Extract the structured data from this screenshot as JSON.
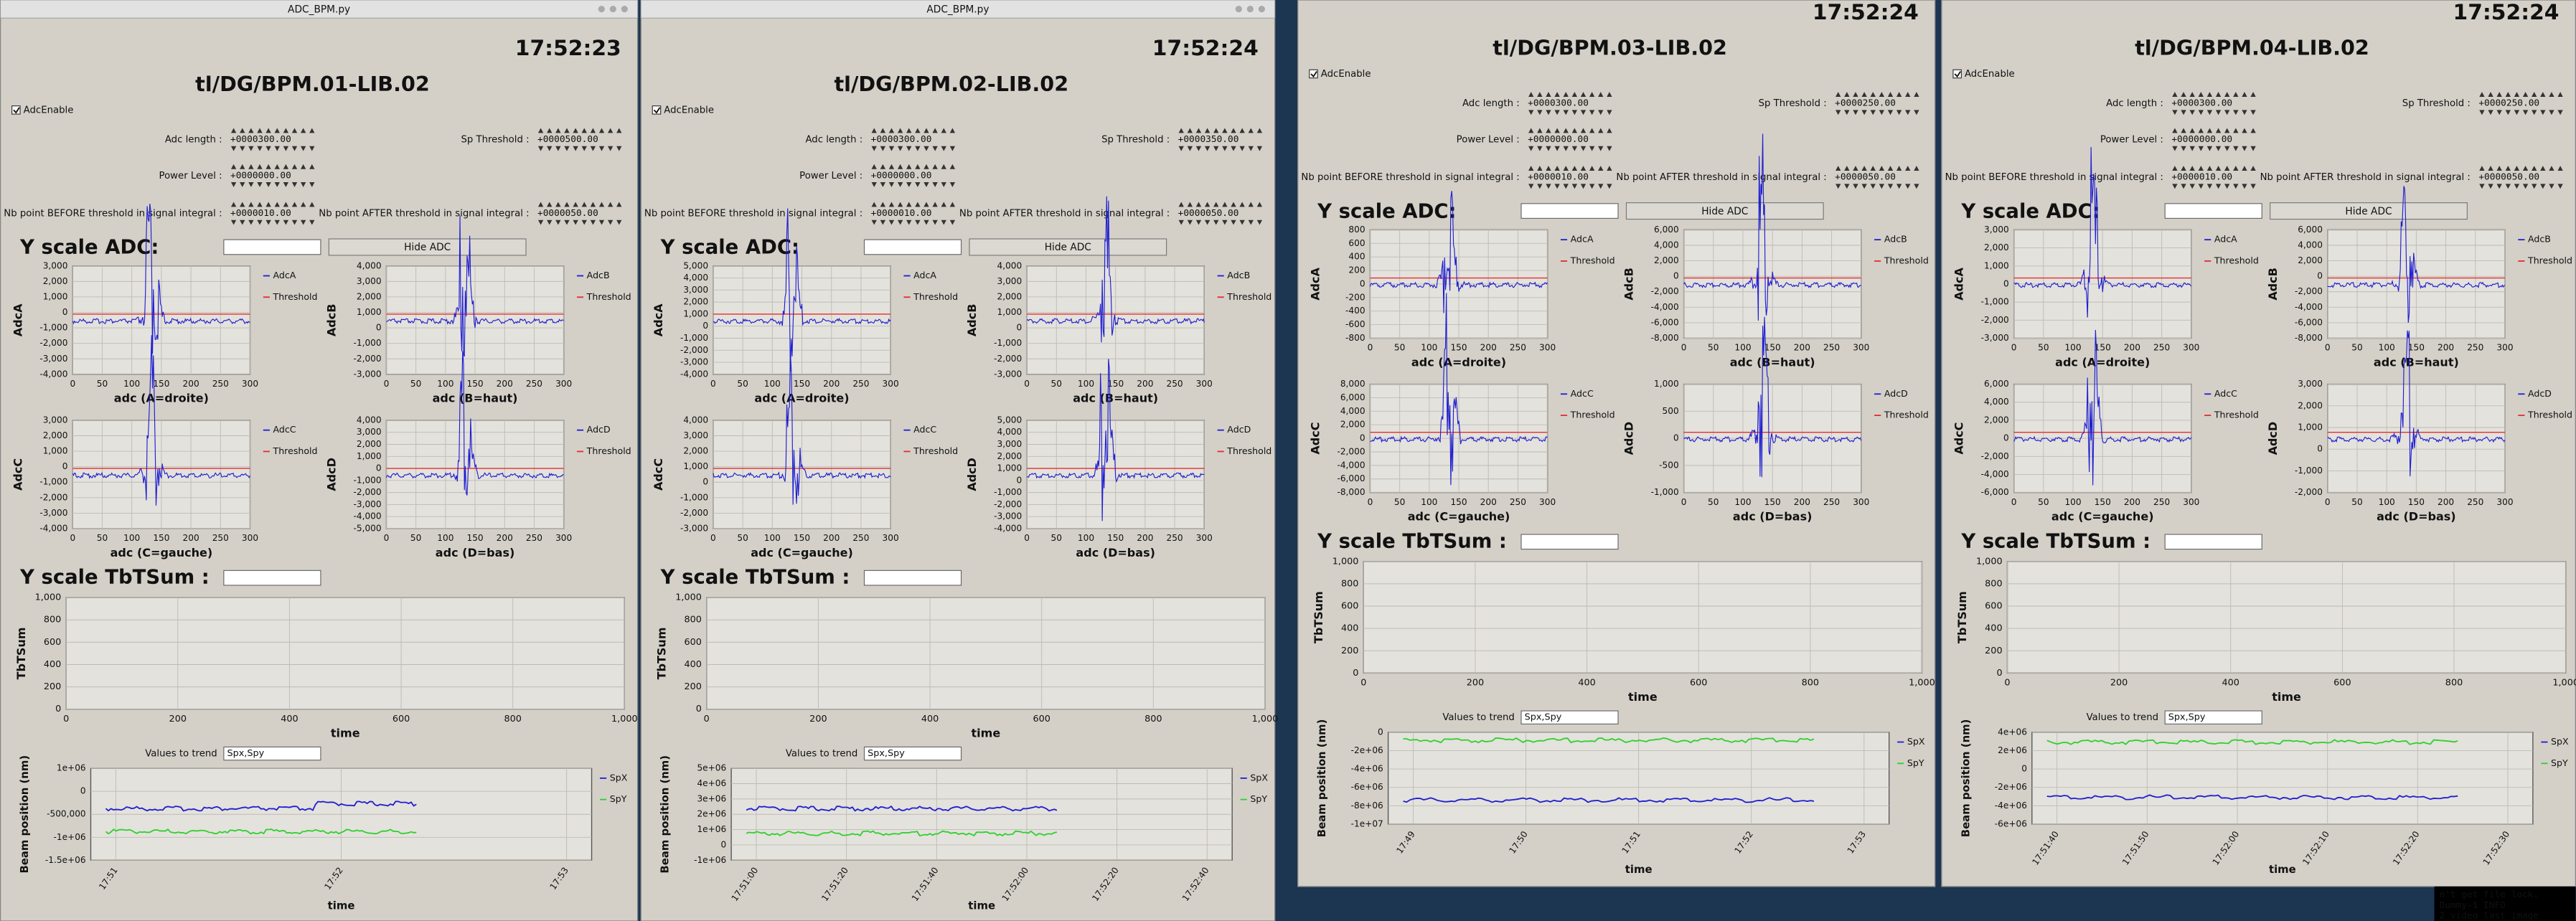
{
  "windows": [
    {
      "title_bar": "ADC_BPM.py",
      "clock": "17:52:23",
      "device": "tl/DG/BPM.01-LIB.02",
      "adc_enable": "AdcEnable",
      "fields": [
        {
          "label": "Adc length :",
          "value": "+0000300.00"
        },
        {
          "label": "Sp Threshold :",
          "value": "+0000500.00"
        },
        {
          "label": "Power Level :",
          "value": "+0000000.00"
        },
        {
          "label": "Nb point BEFORE threshold in signal integral :",
          "value": "+0000010.00"
        },
        {
          "label": "Nb point AFTER threshold in signal integral :",
          "value": "+0000050.00"
        }
      ],
      "adc_scale_label": "Y scale ADC:",
      "hide_button": "Hide ADC",
      "adc_plots": [
        {
          "ylabel": "AdcA",
          "xlabel": "adc  (A=droite)",
          "legend": [
            "AdcA",
            "Threshold"
          ],
          "yticks": [
            "3,000",
            "2,000",
            "1,000",
            "0",
            "-1,000",
            "-2,000",
            "-3,000",
            "-4,000"
          ],
          "xticks": [
            "0",
            "50",
            "100",
            "150",
            "200",
            "250",
            "300"
          ]
        },
        {
          "ylabel": "AdcB",
          "xlabel": "adc  (B=haut)",
          "legend": [
            "AdcB",
            "Threshold"
          ],
          "yticks": [
            "4,000",
            "3,000",
            "2,000",
            "1,000",
            "0",
            "-1,000",
            "-2,000",
            "-3,000"
          ],
          "xticks": [
            "0",
            "50",
            "100",
            "150",
            "200",
            "250",
            "300"
          ]
        },
        {
          "ylabel": "AdcC",
          "xlabel": "adc  (C=gauche)",
          "legend": [
            "AdcC",
            "Threshold"
          ],
          "yticks": [
            "3,000",
            "2,000",
            "1,000",
            "0",
            "-1,000",
            "-2,000",
            "-3,000",
            "-4,000"
          ],
          "xticks": [
            "0",
            "50",
            "100",
            "150",
            "200",
            "250",
            "300"
          ]
        },
        {
          "ylabel": "AdcD",
          "xlabel": "adc  (D=bas)",
          "legend": [
            "AdcD",
            "Threshold"
          ],
          "yticks": [
            "4,000",
            "3,000",
            "2,000",
            "1,000",
            "0",
            "-1,000",
            "-2,000",
            "-3,000",
            "-4,000",
            "-5,000"
          ],
          "xticks": [
            "0",
            "50",
            "100",
            "150",
            "200",
            "250",
            "300"
          ]
        }
      ],
      "tbt_scale_label": "Y scale TbTSum :",
      "tbt_plot": {
        "ylabel": "TbTSum",
        "xlabel": "time",
        "yticks": [
          "1,000",
          "800",
          "600",
          "400",
          "200",
          "0"
        ],
        "xticks": [
          "0",
          "200",
          "400",
          "600",
          "800",
          "1,000"
        ]
      },
      "trend_label": "Values to trend",
      "trend_input": "Spx,Spy",
      "trend_plot": {
        "ylabel": "Beam position (nm)",
        "xlabel": "time",
        "legend": [
          "SpX",
          "SpY"
        ],
        "yticks": [
          "1e+06",
          "0",
          "-500,000",
          "-1e+06",
          "-1.5e+06"
        ],
        "xticks": [
          "17:51",
          "17:52",
          "17:53"
        ]
      }
    },
    {
      "title_bar": "ADC_BPM.py",
      "clock": "17:52:24",
      "device": "tl/DG/BPM.02-LIB.02",
      "adc_enable": "AdcEnable",
      "fields": [
        {
          "label": "Adc length :",
          "value": "+0000300.00"
        },
        {
          "label": "Sp Threshold :",
          "value": "+0000350.00"
        },
        {
          "label": "Power Level :",
          "value": "+0000000.00"
        },
        {
          "label": "Nb point BEFORE threshold in signal integral :",
          "value": "+0000010.00"
        },
        {
          "label": "Nb point AFTER threshold in signal integral :",
          "value": "+0000050.00"
        }
      ],
      "adc_scale_label": "Y scale ADC:",
      "hide_button": "Hide ADC",
      "adc_plots": [
        {
          "ylabel": "AdcA",
          "xlabel": "adc  (A=droite)",
          "legend": [
            "AdcA",
            "Threshold"
          ],
          "yticks": [
            "5,000",
            "4,000",
            "3,000",
            "2,000",
            "1,000",
            "0",
            "-1,000",
            "-2,000",
            "-3,000",
            "-4,000"
          ],
          "xticks": [
            "0",
            "50",
            "100",
            "150",
            "200",
            "250",
            "300"
          ]
        },
        {
          "ylabel": "AdcB",
          "xlabel": "adc  (B=haut)",
          "legend": [
            "AdcB",
            "Threshold"
          ],
          "yticks": [
            "4,000",
            "3,000",
            "2,000",
            "1,000",
            "0",
            "-1,000",
            "-2,000",
            "-3,000"
          ],
          "xticks": [
            "0",
            "50",
            "100",
            "150",
            "200",
            "250",
            "300"
          ]
        },
        {
          "ylabel": "AdcC",
          "xlabel": "adc  (C=gauche)",
          "legend": [
            "AdcC",
            "Threshold"
          ],
          "yticks": [
            "4,000",
            "3,000",
            "2,000",
            "1,000",
            "0",
            "-1,000",
            "-2,000",
            "-3,000"
          ],
          "xticks": [
            "0",
            "50",
            "100",
            "150",
            "200",
            "250",
            "300"
          ]
        },
        {
          "ylabel": "AdcD",
          "xlabel": "adc  (D=bas)",
          "legend": [
            "AdcD",
            "Threshold"
          ],
          "yticks": [
            "5,000",
            "4,000",
            "3,000",
            "2,000",
            "1,000",
            "0",
            "-1,000",
            "-2,000",
            "-3,000",
            "-4,000"
          ],
          "xticks": [
            "0",
            "50",
            "100",
            "150",
            "200",
            "250",
            "300"
          ]
        }
      ],
      "tbt_scale_label": "Y scale TbTSum :",
      "tbt_plot": {
        "ylabel": "TbTSum",
        "xlabel": "time",
        "yticks": [
          "1,000",
          "800",
          "600",
          "400",
          "200",
          "0"
        ],
        "xticks": [
          "0",
          "200",
          "400",
          "600",
          "800",
          "1,000"
        ]
      },
      "trend_label": "Values to trend",
      "trend_input": "Spx,Spy",
      "trend_plot": {
        "ylabel": "Beam position (nm)",
        "xlabel": "time",
        "legend": [
          "SpX",
          "SpY"
        ],
        "yticks": [
          "5e+06",
          "4e+06",
          "3e+06",
          "2e+06",
          "1e+06",
          "0",
          "-1e+06"
        ],
        "xticks": [
          "17:51:00",
          "17:51:20",
          "17:51:40",
          "17:52:00",
          "17:52:20",
          "17:52:40"
        ]
      }
    },
    {
      "clock": "17:52:24",
      "device": "tl/DG/BPM.03-LIB.02",
      "adc_enable": "AdcEnable",
      "fields": [
        {
          "label": "Adc length :",
          "value": "+0000300.00"
        },
        {
          "label": "Sp Threshold :",
          "value": "+0000250.00"
        },
        {
          "label": "Power Level :",
          "value": "+0000000.00"
        },
        {
          "label": "Nb point BEFORE threshold in signal integral :",
          "value": "+0000010.00"
        },
        {
          "label": "Nb point AFTER threshold in signal integral :",
          "value": "+0000050.00"
        }
      ],
      "adc_scale_label": "Y scale ADC:",
      "hide_button": "Hide ADC",
      "adc_plots": [
        {
          "ylabel": "AdcA",
          "xlabel": "adc  (A=droite)",
          "legend": [
            "AdcA",
            "Threshold"
          ],
          "yticks": [
            "800",
            "600",
            "400",
            "200",
            "0",
            "-200",
            "-400",
            "-600",
            "-800"
          ],
          "xticks": [
            "0",
            "50",
            "100",
            "150",
            "200",
            "250",
            "300"
          ]
        },
        {
          "ylabel": "AdcB",
          "xlabel": "adc  (B=haut)",
          "legend": [
            "AdcB",
            "Threshold"
          ],
          "yticks": [
            "6,000",
            "4,000",
            "2,000",
            "0",
            "-2,000",
            "-4,000",
            "-6,000",
            "-8,000"
          ],
          "xticks": [
            "0",
            "50",
            "100",
            "150",
            "200",
            "250",
            "300"
          ]
        },
        {
          "ylabel": "AdcC",
          "xlabel": "adc  (C=gauche)",
          "legend": [
            "AdcC",
            "Threshold"
          ],
          "yticks": [
            "8,000",
            "6,000",
            "4,000",
            "2,000",
            "0",
            "-2,000",
            "-4,000",
            "-6,000",
            "-8,000"
          ],
          "xticks": [
            "0",
            "50",
            "100",
            "150",
            "200",
            "250",
            "300"
          ]
        },
        {
          "ylabel": "AdcD",
          "xlabel": "adc  (D=bas)",
          "legend": [
            "AdcD",
            "Threshold"
          ],
          "yticks": [
            "1,000",
            "500",
            "0",
            "-500",
            "-1,000"
          ],
          "xticks": [
            "0",
            "50",
            "100",
            "150",
            "200",
            "250",
            "300"
          ]
        }
      ],
      "tbt_scale_label": "Y scale TbTSum :",
      "tbt_plot": {
        "ylabel": "TbTSum",
        "xlabel": "time",
        "yticks": [
          "1,000",
          "800",
          "600",
          "400",
          "200",
          "0"
        ],
        "xticks": [
          "0",
          "200",
          "400",
          "600",
          "800",
          "1,000"
        ]
      },
      "trend_label": "Values to trend",
      "trend_input": "Spx,Spy",
      "trend_plot": {
        "ylabel": "Beam position (nm)",
        "xlabel": "time",
        "legend": [
          "SpX",
          "SpY"
        ],
        "yticks": [
          "0",
          "-2e+06",
          "-4e+06",
          "-6e+06",
          "-8e+06",
          "-1e+07"
        ],
        "xticks": [
          "17:49",
          "17:50",
          "17:51",
          "17:52",
          "17:53"
        ]
      }
    },
    {
      "clock": "17:52:24",
      "device": "tl/DG/BPM.04-LIB.02",
      "adc_enable": "AdcEnable",
      "fields": [
        {
          "label": "Adc length :",
          "value": "+0000300.00"
        },
        {
          "label": "Sp Threshold :",
          "value": "+0000250.00"
        },
        {
          "label": "Power Level :",
          "value": "+0000000.00"
        },
        {
          "label": "Nb point BEFORE threshold in signal integral :",
          "value": "+0000010.00"
        },
        {
          "label": "Nb point AFTER threshold in signal integral :",
          "value": "+0000050.00"
        }
      ],
      "adc_scale_label": "Y scale ADC:",
      "hide_button": "Hide ADC",
      "adc_plots": [
        {
          "ylabel": "AdcA",
          "xlabel": "adc  (A=droite)",
          "legend": [
            "AdcA",
            "Threshold"
          ],
          "yticks": [
            "3,000",
            "2,000",
            "1,000",
            "0",
            "-1,000",
            "-2,000",
            "-3,000"
          ],
          "xticks": [
            "0",
            "50",
            "100",
            "150",
            "200",
            "250",
            "300"
          ]
        },
        {
          "ylabel": "AdcB",
          "xlabel": "adc  (B=haut)",
          "legend": [
            "AdcB",
            "Threshold"
          ],
          "yticks": [
            "6,000",
            "4,000",
            "2,000",
            "0",
            "-2,000",
            "-4,000",
            "-6,000",
            "-8,000"
          ],
          "xticks": [
            "0",
            "50",
            "100",
            "150",
            "200",
            "250",
            "300"
          ]
        },
        {
          "ylabel": "AdcC",
          "xlabel": "adc  (C=gauche)",
          "legend": [
            "AdcC",
            "Threshold"
          ],
          "yticks": [
            "6,000",
            "4,000",
            "2,000",
            "0",
            "-2,000",
            "-4,000",
            "-6,000"
          ],
          "xticks": [
            "0",
            "50",
            "100",
            "150",
            "200",
            "250",
            "300"
          ]
        },
        {
          "ylabel": "AdcD",
          "xlabel": "adc  (D=bas)",
          "legend": [
            "AdcD",
            "Threshold"
          ],
          "yticks": [
            "3,000",
            "2,000",
            "1,000",
            "0",
            "-1,000",
            "-2,000"
          ],
          "xticks": [
            "0",
            "50",
            "100",
            "150",
            "200",
            "250",
            "300"
          ]
        }
      ],
      "tbt_scale_label": "Y scale TbTSum :",
      "tbt_plot": {
        "ylabel": "TbTSum",
        "xlabel": "time",
        "yticks": [
          "1,000",
          "800",
          "600",
          "400",
          "200",
          "0"
        ],
        "xticks": [
          "0",
          "200",
          "400",
          "600",
          "800",
          "1,000"
        ]
      },
      "trend_label": "Values to trend",
      "trend_input": "Spx,Spy",
      "trend_plot": {
        "ylabel": "Beam position (nm)",
        "xlabel": "time",
        "legend": [
          "SpX",
          "SpY"
        ],
        "yticks": [
          "4e+06",
          "2e+06",
          "0",
          "-2e+06",
          "-4e+06",
          "-6e+06"
        ],
        "xticks": [
          "17:51:40",
          "17:51:50",
          "17:52:00",
          "17:52:10",
          "17:52:20",
          "17:52:30"
        ]
      }
    }
  ],
  "terminal": [
    "n't get file lock.",
    "Dummy-1          INFO",
    "2 video last image"
  ]
}
